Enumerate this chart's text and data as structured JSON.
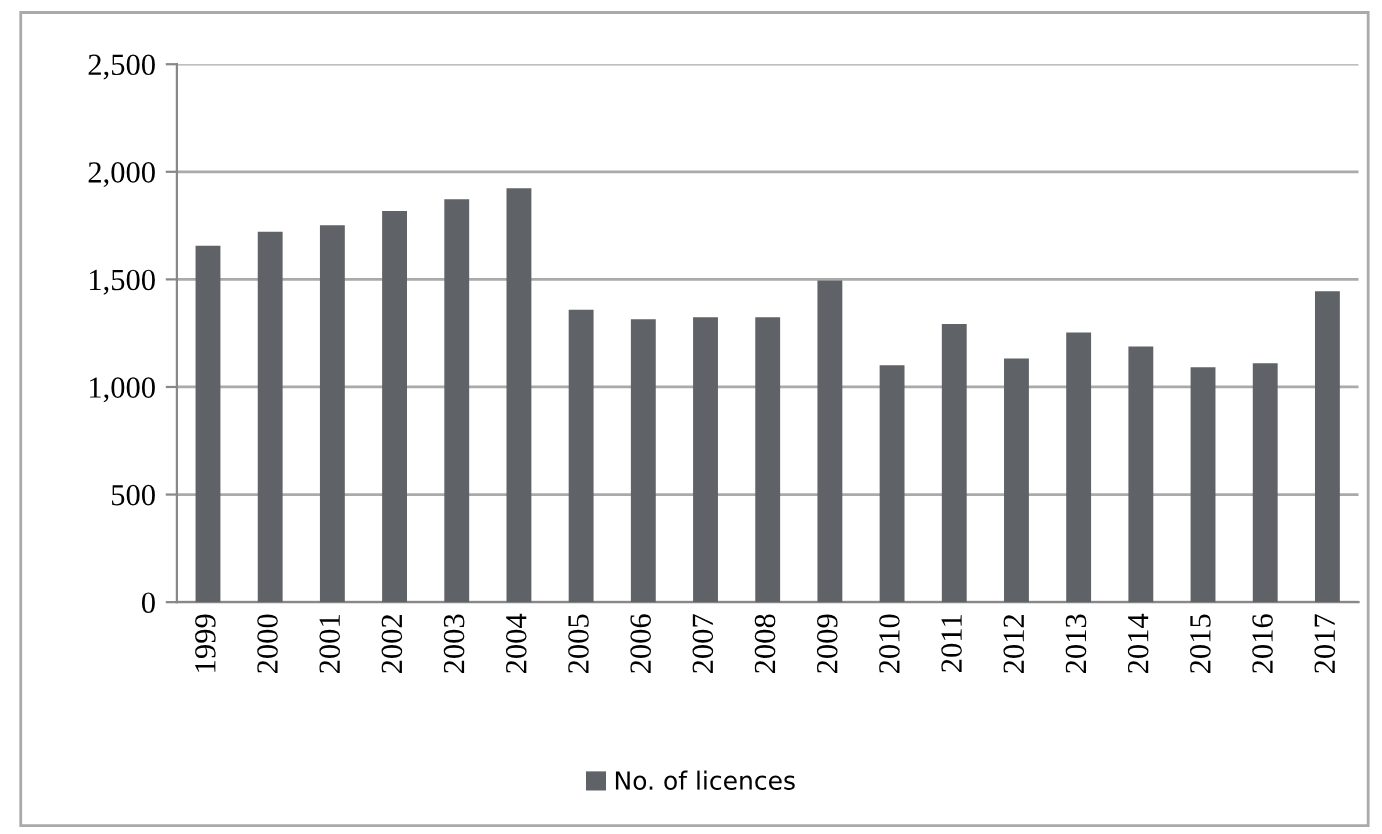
{
  "chart_data": {
    "type": "bar",
    "categories": [
      "1999",
      "2000",
      "2001",
      "2002",
      "2003",
      "2004",
      "2005",
      "2006",
      "2007",
      "2008",
      "2009",
      "2010",
      "2011",
      "2012",
      "2013",
      "2014",
      "2015",
      "2016",
      "2017"
    ],
    "series": [
      {
        "name": "No. of licences",
        "color": "#5f6266",
        "values": [
          1656,
          1721,
          1752,
          1818,
          1873,
          1923,
          1359,
          1315,
          1324,
          1324,
          1495,
          1101,
          1293,
          1132,
          1253,
          1188,
          1092,
          1110,
          1445
        ]
      }
    ],
    "ylim": [
      0,
      2500
    ],
    "yticks": [
      {
        "value": 0,
        "label": "0"
      },
      {
        "value": 500,
        "label": "500"
      },
      {
        "value": 1000,
        "label": "1,000"
      },
      {
        "value": 1500,
        "label": "1,500"
      },
      {
        "value": 2000,
        "label": "2,000"
      },
      {
        "value": 2500,
        "label": "2,500"
      }
    ],
    "grid": "y",
    "legend": "bottom"
  }
}
